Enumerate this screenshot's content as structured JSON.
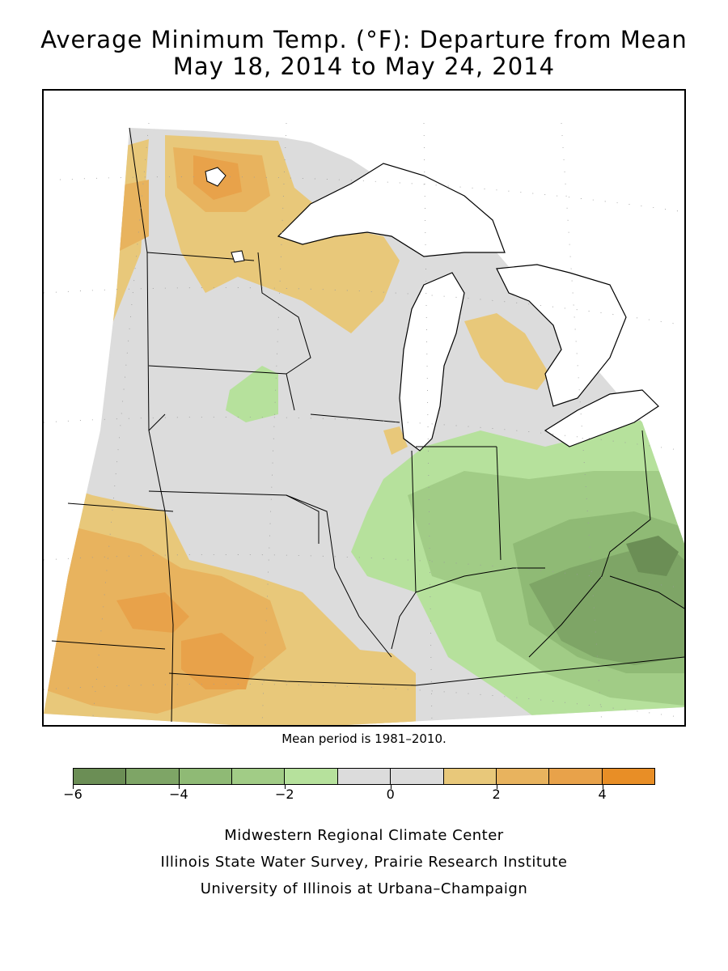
{
  "title_line1": "Average Minimum Temp. (°F): Departure from Mean",
  "title_line2": "May 18, 2014 to May 24, 2014",
  "mean_note": "Mean period is 1981–2010.",
  "legend": {
    "bins": [
      {
        "from": -6,
        "to": -5,
        "color": "#6b8e55"
      },
      {
        "from": -5,
        "to": -4,
        "color": "#7ea566"
      },
      {
        "from": -4,
        "to": -3,
        "color": "#8fba75"
      },
      {
        "from": -3,
        "to": -2,
        "color": "#a1cc86"
      },
      {
        "from": -2,
        "to": -1,
        "color": "#b6e19c"
      },
      {
        "from": -1,
        "to": 0,
        "color": "#dcdcdc"
      },
      {
        "from": 0,
        "to": 1,
        "color": "#dcdcdc"
      },
      {
        "from": 1,
        "to": 2,
        "color": "#e8c87a"
      },
      {
        "from": 2,
        "to": 3,
        "color": "#e8b35e"
      },
      {
        "from": 3,
        "to": 4,
        "color": "#e8a24a"
      },
      {
        "from": 4,
        "to": 5,
        "color": "#e88e26"
      }
    ],
    "tick_labels": [
      {
        "value": -6,
        "label": "−6"
      },
      {
        "value": -4,
        "label": "−4"
      },
      {
        "value": -2,
        "label": "−2"
      },
      {
        "value": 0,
        "label": "0"
      },
      {
        "value": 2,
        "label": "2"
      },
      {
        "value": 4,
        "label": "4"
      }
    ]
  },
  "credits": {
    "line1": "Midwestern Regional Climate Center",
    "line2": "Illinois State Water Survey, Prairie Research Institute",
    "line3": "University of Illinois at Urbana–Champaign"
  },
  "colors": {
    "water": "#ffffff",
    "neutral": "#dcdcdc",
    "warm_light": "#e8c87a",
    "warm_mid": "#e8b35e",
    "warm_strong": "#e8a24a",
    "cool_light": "#b6e19c",
    "cool_mid": "#a1cc86",
    "cool_strong": "#8fba75",
    "cool_deep": "#7ea566",
    "cool_deepest": "#6b8e55"
  }
}
